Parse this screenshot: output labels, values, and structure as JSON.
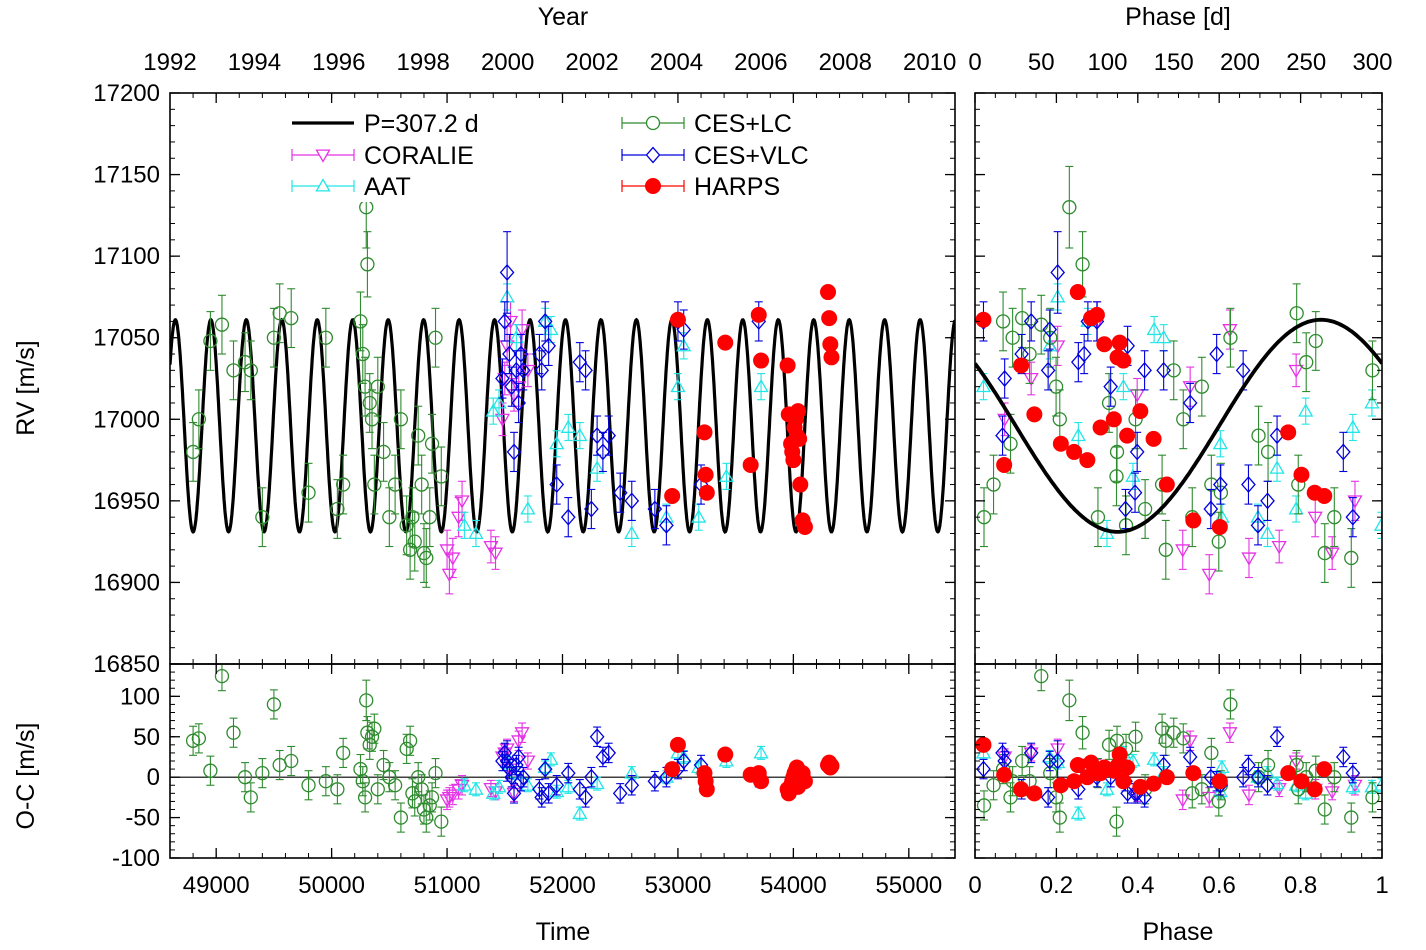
{
  "chart_data": {
    "type": "scatter",
    "colors": {
      "model": "#000000",
      "CORALIE": "#e533e5",
      "AAT": "#22e5e5",
      "CES+LC": "#2e8b2e",
      "CES+VLC": "#0000dd",
      "HARPS": "#ff0000"
    },
    "labels": {
      "year": "Year",
      "phase_days": "Phase [d]",
      "rv": "RV [m/s]",
      "oc": "O-C [m/s]",
      "time": "Time",
      "phase": "Phase"
    },
    "axes": {
      "time": {
        "range": [
          48600,
          55400
        ],
        "ticks": [
          49000,
          50000,
          51000,
          52000,
          53000,
          54000,
          55000
        ]
      },
      "year": {
        "range": [
          1992.0,
          2010.6
        ],
        "ticks": [
          1992,
          1994,
          1996,
          1998,
          2000,
          2002,
          2004,
          2006,
          2008,
          2010
        ]
      },
      "phase": {
        "range": [
          0,
          1
        ],
        "ticks": [
          "0",
          "0.2",
          "0.4",
          "0.6",
          "0.8",
          "1"
        ]
      },
      "phase_days": {
        "range": [
          0,
          307.2
        ],
        "ticks": [
          0,
          50,
          100,
          150,
          200,
          250,
          300
        ]
      },
      "rv": {
        "range": [
          16850,
          17200
        ],
        "ticks": [
          16850,
          16900,
          16950,
          17000,
          17050,
          17100,
          17150,
          17200
        ]
      },
      "oc": {
        "range": [
          -100,
          140
        ],
        "ticks": [
          -100,
          -50,
          0,
          50,
          100
        ]
      }
    },
    "model": {
      "label": "P=307.2 d",
      "period_days": 307.2,
      "gamma": 16996,
      "K": 65,
      "phase_of_minimum": 0.35,
      "t_ref": 49000
    },
    "series": [
      {
        "name": "CORALIE",
        "marker": "triangle-down",
        "points": [
          [
            51000,
            16920,
            -28,
            12
          ],
          [
            51020,
            16905,
            -25,
            12
          ],
          [
            51050,
            16915,
            -22,
            12
          ],
          [
            51100,
            16940,
            -15,
            12
          ],
          [
            51130,
            16950,
            -10,
            12
          ],
          [
            51380,
            16922,
            -14,
            10
          ],
          [
            51420,
            16918,
            -18,
            10
          ],
          [
            51480,
            17000,
            25,
            10
          ],
          [
            51500,
            17025,
            30,
            10
          ],
          [
            51520,
            17045,
            35,
            12
          ],
          [
            51550,
            17060,
            10,
            12
          ],
          [
            51580,
            17015,
            -20,
            10
          ],
          [
            51620,
            17020,
            45,
            12
          ],
          [
            51650,
            17055,
            55,
            12
          ],
          [
            51700,
            17030,
            20,
            10
          ]
        ]
      },
      {
        "name": "AAT",
        "marker": "triangle-up",
        "points": [
          [
            51150,
            16935,
            -10,
            8
          ],
          [
            51250,
            16930,
            -15,
            8
          ],
          [
            51400,
            17005,
            -20,
            8
          ],
          [
            51450,
            17010,
            -12,
            8
          ],
          [
            51520,
            17075,
            18,
            8
          ],
          [
            51600,
            17050,
            5,
            8
          ],
          [
            51700,
            16945,
            -10,
            8
          ],
          [
            51850,
            17060,
            12,
            8
          ],
          [
            51900,
            17055,
            22,
            8
          ],
          [
            51950,
            16985,
            -18,
            8
          ],
          [
            52050,
            16995,
            -12,
            8
          ],
          [
            52150,
            16990,
            -45,
            8
          ],
          [
            52300,
            16970,
            -8,
            8
          ],
          [
            52600,
            16930,
            5,
            8
          ],
          [
            52900,
            16940,
            0,
            8
          ],
          [
            53000,
            17020,
            30,
            8
          ],
          [
            53050,
            17045,
            25,
            8
          ],
          [
            53180,
            16940,
            12,
            8
          ],
          [
            53420,
            16965,
            20,
            8
          ],
          [
            53720,
            17020,
            30,
            8
          ]
        ]
      },
      {
        "name": "CES+LC",
        "marker": "circle",
        "points": [
          [
            48800,
            16980,
            45,
            18
          ],
          [
            48850,
            17000,
            48,
            18
          ],
          [
            48950,
            17048,
            8,
            18
          ],
          [
            49050,
            17058,
            125,
            18
          ],
          [
            49150,
            17030,
            55,
            18
          ],
          [
            49250,
            17035,
            0,
            18
          ],
          [
            49300,
            17030,
            -25,
            18
          ],
          [
            49400,
            16940,
            5,
            18
          ],
          [
            49500,
            17050,
            90,
            18
          ],
          [
            49550,
            17065,
            15,
            18
          ],
          [
            49650,
            17062,
            20,
            18
          ],
          [
            49800,
            16955,
            -10,
            18
          ],
          [
            49950,
            17050,
            -5,
            18
          ],
          [
            50050,
            16945,
            -15,
            18
          ],
          [
            50100,
            16960,
            30,
            18
          ],
          [
            50250,
            17060,
            10,
            18
          ],
          [
            50270,
            17040,
            -5,
            18
          ],
          [
            50290,
            17020,
            -25,
            18
          ],
          [
            50300,
            17130,
            95,
            25
          ],
          [
            50310,
            17095,
            55,
            20
          ],
          [
            50330,
            17010,
            40,
            18
          ],
          [
            50350,
            17000,
            50,
            18
          ],
          [
            50370,
            16960,
            60,
            18
          ],
          [
            50400,
            17020,
            -15,
            18
          ],
          [
            50450,
            16980,
            15,
            18
          ],
          [
            50500,
            16940,
            0,
            18
          ],
          [
            50550,
            16960,
            -10,
            18
          ],
          [
            50600,
            17000,
            -50,
            18
          ],
          [
            50650,
            16935,
            35,
            18
          ],
          [
            50680,
            16920,
            45,
            18
          ],
          [
            50700,
            16940,
            -20,
            18
          ],
          [
            50720,
            16925,
            -30,
            18
          ],
          [
            50750,
            16990,
            0,
            18
          ],
          [
            50780,
            16960,
            -15,
            18
          ],
          [
            50800,
            16918,
            -40,
            18
          ],
          [
            50820,
            16915,
            -50,
            18
          ],
          [
            50850,
            16940,
            -35,
            18
          ],
          [
            50870,
            16985,
            -25,
            18
          ],
          [
            50900,
            17050,
            5,
            18
          ],
          [
            50950,
            16965,
            -55,
            18
          ]
        ]
      },
      {
        "name": "CES+VLC",
        "marker": "diamond",
        "points": [
          [
            51480,
            17025,
            20,
            12
          ],
          [
            51500,
            17060,
            30,
            12
          ],
          [
            51520,
            17090,
            20,
            25
          ],
          [
            51540,
            17040,
            10,
            12
          ],
          [
            51560,
            17020,
            0,
            12
          ],
          [
            51580,
            16980,
            -20,
            12
          ],
          [
            51600,
            17030,
            15,
            12
          ],
          [
            51620,
            17010,
            25,
            12
          ],
          [
            51640,
            17040,
            -5,
            12
          ],
          [
            51660,
            17030,
            0,
            12
          ],
          [
            51800,
            17040,
            -15,
            12
          ],
          [
            51820,
            17030,
            -25,
            12
          ],
          [
            51850,
            17060,
            10,
            12
          ],
          [
            51880,
            17045,
            -20,
            12
          ],
          [
            51950,
            16960,
            -10,
            12
          ],
          [
            52050,
            16940,
            5,
            12
          ],
          [
            52150,
            17035,
            -15,
            12
          ],
          [
            52200,
            17030,
            -25,
            12
          ],
          [
            52250,
            16945,
            0,
            12
          ],
          [
            52300,
            16990,
            50,
            12
          ],
          [
            52350,
            16980,
            25,
            12
          ],
          [
            52400,
            16990,
            30,
            12
          ],
          [
            52500,
            16955,
            -20,
            12
          ],
          [
            52600,
            16950,
            -10,
            12
          ],
          [
            52800,
            16945,
            -5,
            12
          ],
          [
            52900,
            16935,
            0,
            12
          ],
          [
            53000,
            17060,
            10,
            12
          ],
          [
            53050,
            17055,
            20,
            12
          ],
          [
            53200,
            16960,
            15,
            12
          ],
          [
            53700,
            17060,
            0,
            12
          ]
        ]
      },
      {
        "name": "HARPS",
        "marker": "filled-circle",
        "points": [
          [
            52950,
            16953,
            10,
            3
          ],
          [
            53000,
            17061,
            40,
            3
          ],
          [
            53230,
            16992,
            5,
            3
          ],
          [
            53240,
            16966,
            -5,
            3
          ],
          [
            53250,
            16955,
            -15,
            3
          ],
          [
            53410,
            17047,
            28,
            3
          ],
          [
            53630,
            16972,
            3,
            3
          ],
          [
            53700,
            17064,
            5,
            3
          ],
          [
            53720,
            17036,
            -5,
            3
          ],
          [
            53950,
            17033,
            -15,
            3
          ],
          [
            53960,
            17003,
            -20,
            3
          ],
          [
            53980,
            16985,
            -10,
            3
          ],
          [
            53990,
            16980,
            -5,
            3
          ],
          [
            54000,
            16975,
            0,
            3
          ],
          [
            54010,
            16995,
            5,
            3
          ],
          [
            54020,
            17000,
            8,
            3
          ],
          [
            54030,
            16990,
            12,
            3
          ],
          [
            54040,
            17005,
            -12,
            3
          ],
          [
            54050,
            16988,
            -8,
            3
          ],
          [
            54060,
            16960,
            0,
            3
          ],
          [
            54080,
            16938,
            5,
            3
          ],
          [
            54100,
            16934,
            -5,
            3
          ],
          [
            54300,
            17078,
            15,
            3
          ],
          [
            54310,
            17062,
            18,
            3
          ],
          [
            54320,
            17046,
            12,
            3
          ],
          [
            54330,
            17038,
            14,
            3
          ]
        ]
      }
    ]
  }
}
